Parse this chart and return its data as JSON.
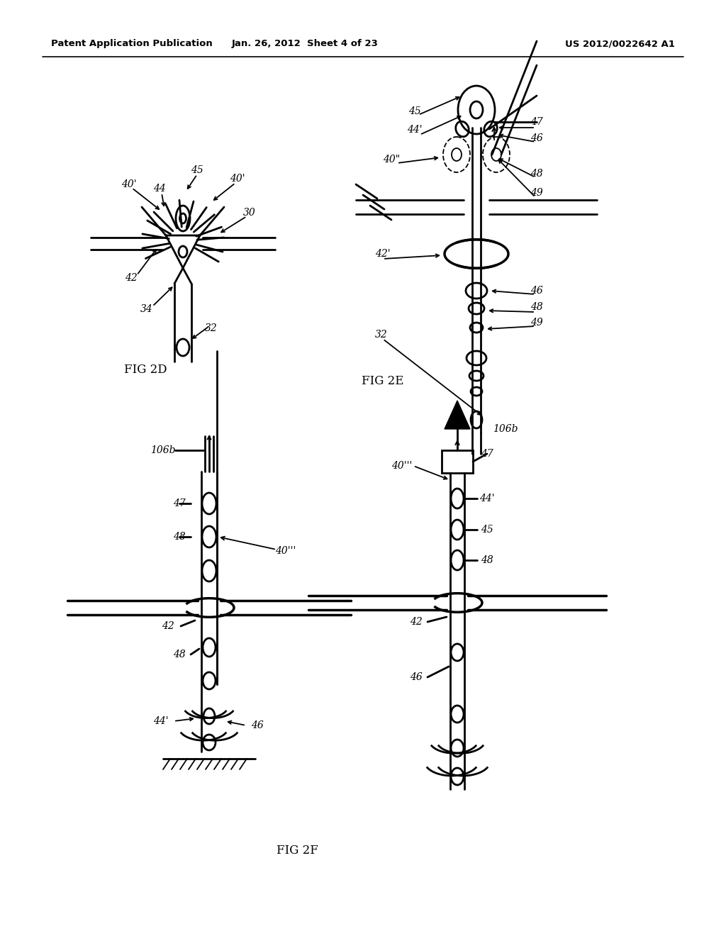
{
  "bg_color": "#ffffff",
  "header_left": "Patent Application Publication",
  "header_mid": "Jan. 26, 2012  Sheet 4 of 23",
  "header_right": "US 2012/0022642 A1"
}
